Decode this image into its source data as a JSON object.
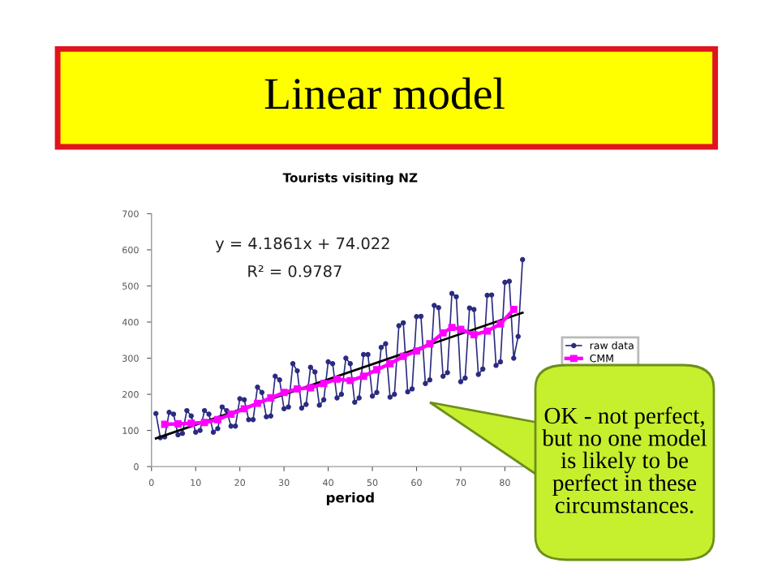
{
  "chart_data": {
    "type": "line",
    "title": "Linear model",
    "subtitle": "Tourists visiting NZ",
    "xlabel": "period",
    "xlim": [
      0,
      90
    ],
    "xticks": [
      0,
      10,
      20,
      30,
      40,
      50,
      60,
      70,
      80
    ],
    "ylim": [
      0,
      700
    ],
    "yticks": [
      0,
      100,
      200,
      300,
      400,
      500,
      600,
      700
    ],
    "grid": false,
    "legend": "right",
    "annotations": [
      "y = 4.1861x + 74.022",
      "R² = 0.9787",
      "OK - not perfect,\nbut no one model\nis likely to be\nperfect in these\ncircumstances."
    ],
    "series": [
      {
        "name": "raw data",
        "color": "#2b2b80",
        "marker": "circle",
        "x": [
          1,
          2,
          3,
          4,
          5,
          6,
          7,
          8,
          9,
          10,
          11,
          12,
          13,
          14,
          15,
          16,
          17,
          18,
          19,
          20,
          21,
          22,
          23,
          24,
          25,
          26,
          27,
          28,
          29,
          30,
          31,
          32,
          33,
          34,
          35,
          36,
          37,
          38,
          39,
          40,
          41,
          42,
          43,
          44,
          45,
          46,
          47,
          48,
          49,
          50,
          51,
          52,
          53,
          54,
          55,
          56,
          57,
          58,
          59,
          60,
          61,
          62,
          63,
          64,
          65,
          66,
          67,
          68,
          69,
          70,
          71,
          72,
          73,
          74,
          75,
          76,
          77,
          78,
          79,
          80,
          81,
          82,
          83,
          84
        ],
        "values": [
          147,
          80,
          82,
          150,
          145,
          88,
          92,
          155,
          140,
          95,
          100,
          155,
          145,
          95,
          105,
          165,
          155,
          112,
          112,
          188,
          185,
          130,
          130,
          220,
          205,
          138,
          140,
          250,
          240,
          160,
          165,
          285,
          265,
          162,
          172,
          275,
          262,
          170,
          185,
          290,
          285,
          190,
          200,
          300,
          285,
          178,
          190,
          310,
          310,
          195,
          205,
          330,
          340,
          192,
          200,
          390,
          398,
          207,
          215,
          415,
          416,
          230,
          240,
          446,
          440,
          250,
          260,
          479,
          470,
          235,
          245,
          439,
          435,
          255,
          270,
          474,
          475,
          280,
          290,
          510,
          513,
          300,
          360,
          573
        ]
      },
      {
        "name": "CMM",
        "color": "#ff00ff",
        "marker": "square",
        "x": [
          3,
          6,
          9,
          12,
          15,
          18,
          21,
          24,
          27,
          30,
          33,
          36,
          39,
          42,
          45,
          48,
          51,
          54,
          57,
          60,
          63,
          66,
          68,
          70,
          73,
          76,
          79,
          82
        ],
        "values": [
          117,
          118,
          120,
          122,
          130,
          145,
          160,
          175,
          190,
          205,
          215,
          218,
          230,
          242,
          238,
          250,
          268,
          285,
          305,
          320,
          340,
          370,
          385,
          380,
          365,
          375,
          395,
          435
        ]
      },
      {
        "type": "line",
        "color": "#000000",
        "marker": "none",
        "x": [
          1,
          84
        ],
        "values": [
          78,
          426
        ]
      }
    ]
  }
}
